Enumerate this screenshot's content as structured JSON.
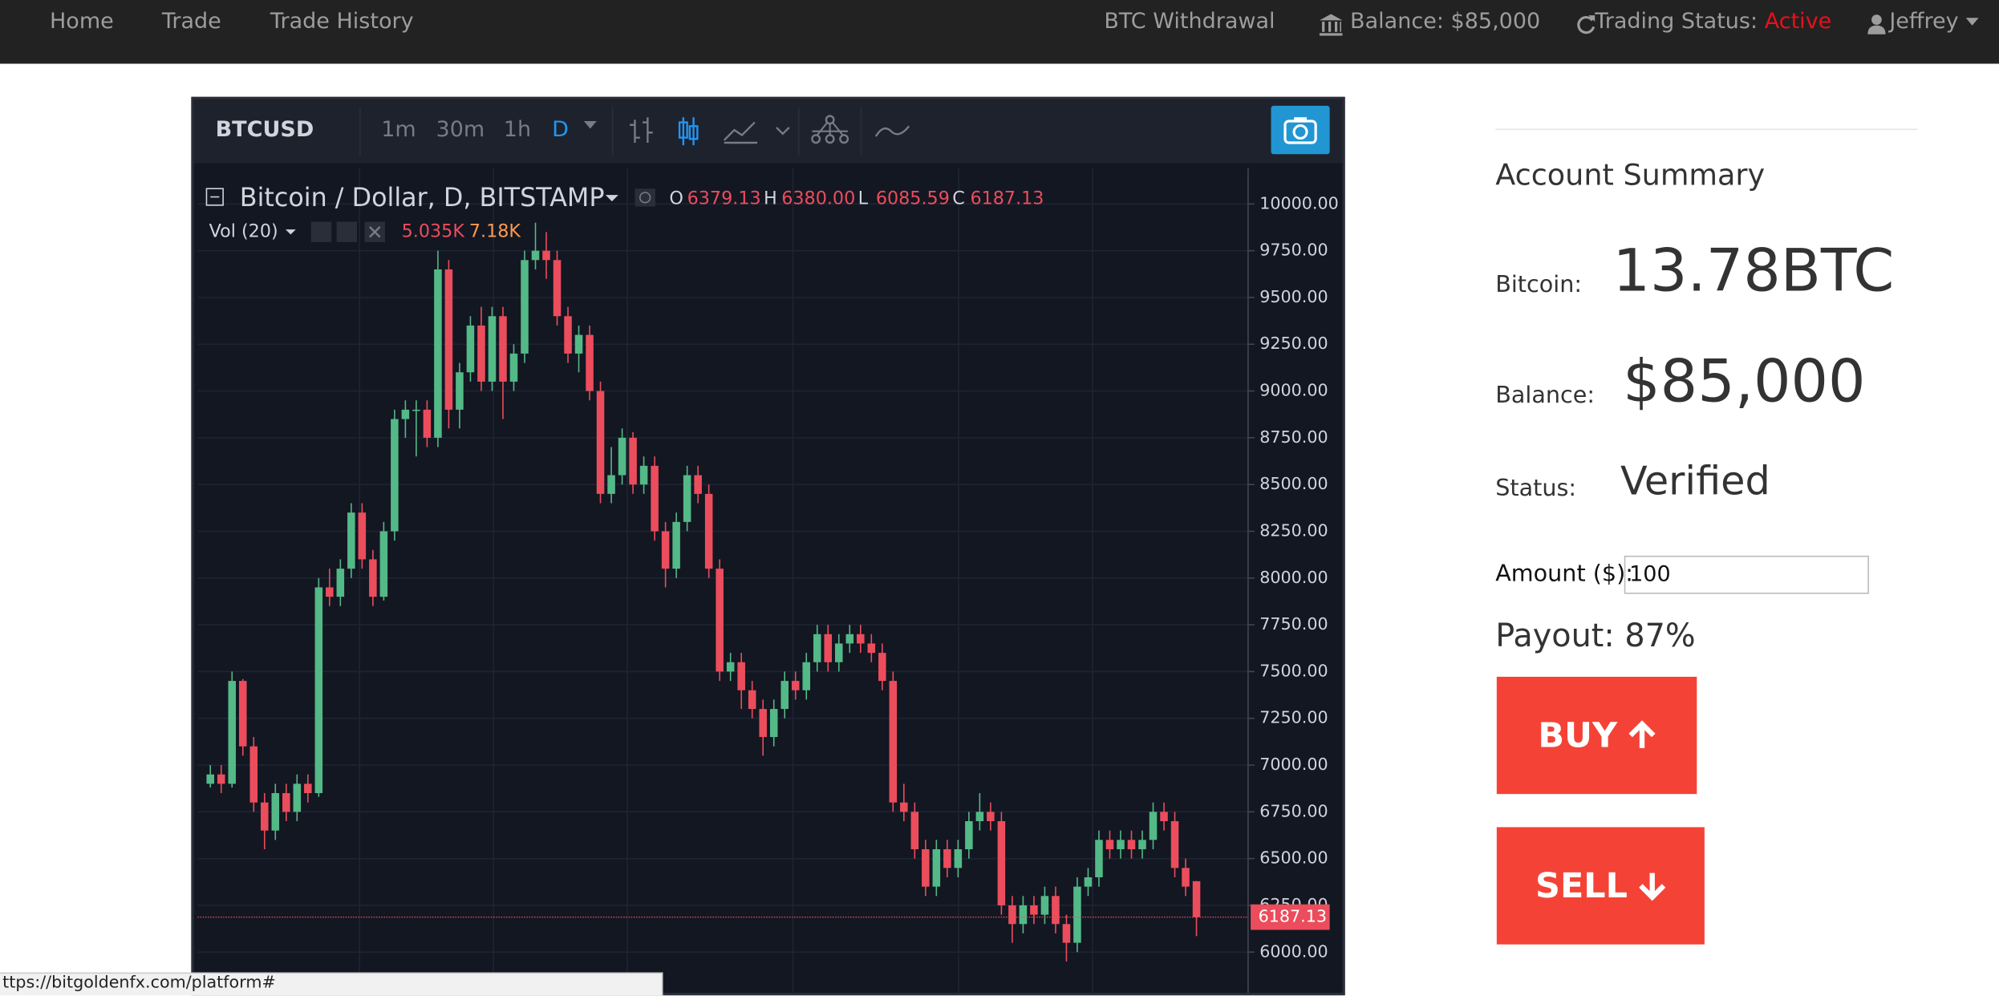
{
  "nav": {
    "links": [
      "Home",
      "Trade",
      "Trade History"
    ],
    "withdrawal": "BTC Withdrawal",
    "balance": "Balance: $85,000",
    "status_label": "Trading Status:",
    "status_value": "Active",
    "user": "Jeffrey"
  },
  "widget": {
    "symbol": "BTCUSD",
    "intervals": [
      "1m",
      "30m",
      "1h",
      "D"
    ],
    "legend": {
      "title": "Bitcoin / Dollar, D, BITSTAMP",
      "ohlc": [
        {
          "key": "O",
          "value": "6379.13"
        },
        {
          "key": "H",
          "value": "6380.00"
        },
        {
          "key": "L",
          "value": "6085.59"
        },
        {
          "key": "C",
          "value": "6187.13"
        }
      ],
      "vol_label": "Vol (20)",
      "vol_values": [
        "5.035K",
        "7.18K"
      ]
    }
  },
  "chart_data": {
    "type": "candlestick",
    "up_color": "#53b987",
    "down_color": "#eb4d5c",
    "ylim": [
      5755,
      10191
    ],
    "yticks": [
      {
        "value": 10000,
        "label": "10000.00"
      },
      {
        "value": 9750,
        "label": "9750.00"
      },
      {
        "value": 9500,
        "label": "9500.00"
      },
      {
        "value": 9250,
        "label": "9250.00"
      },
      {
        "value": 9000,
        "label": "9000.00"
      },
      {
        "value": 8750,
        "label": "8750.00"
      },
      {
        "value": 8500,
        "label": "8500.00"
      },
      {
        "value": 8250,
        "label": "8250.00"
      },
      {
        "value": 8000,
        "label": "8000.00"
      },
      {
        "value": 7750,
        "label": "7750.00"
      },
      {
        "value": 7500,
        "label": "7500.00"
      },
      {
        "value": 7250,
        "label": "7250.00"
      },
      {
        "value": 7000,
        "label": "7000.00"
      },
      {
        "value": 6750,
        "label": "6750.00"
      },
      {
        "value": 6500,
        "label": "6500.00"
      },
      {
        "value": 6250,
        "label": "6250.00"
      },
      {
        "value": 6000,
        "label": "6000.00"
      }
    ],
    "candles": [
      [
        6900,
        7000,
        6880,
        6950
      ],
      [
        6950,
        7000,
        6850,
        6900
      ],
      [
        6900,
        7500,
        6880,
        7450
      ],
      [
        7450,
        7460,
        7050,
        7100
      ],
      [
        7100,
        7150,
        6750,
        6800
      ],
      [
        6800,
        6850,
        6550,
        6650
      ],
      [
        6650,
        6900,
        6600,
        6850
      ],
      [
        6850,
        6900,
        6700,
        6750
      ],
      [
        6750,
        6950,
        6700,
        6900
      ],
      [
        6900,
        6950,
        6800,
        6850
      ],
      [
        6850,
        8000,
        6830,
        7950
      ],
      [
        7950,
        8050,
        7850,
        7900
      ],
      [
        7900,
        8100,
        7850,
        8050
      ],
      [
        8050,
        8400,
        8000,
        8350
      ],
      [
        8350,
        8400,
        8050,
        8100
      ],
      [
        8100,
        8150,
        7850,
        7900
      ],
      [
        7900,
        8300,
        7880,
        8250
      ],
      [
        8250,
        8900,
        8200,
        8850
      ],
      [
        8850,
        8950,
        8750,
        8900
      ],
      [
        8900,
        8950,
        8650,
        8900
      ],
      [
        8900,
        8950,
        8700,
        8750
      ],
      [
        8750,
        9750,
        8700,
        9650
      ],
      [
        9650,
        9700,
        8800,
        8900
      ],
      [
        8900,
        9150,
        8800,
        9100
      ],
      [
        9100,
        9400,
        9050,
        9350
      ],
      [
        9350,
        9450,
        9000,
        9050
      ],
      [
        9050,
        9450,
        9000,
        9400
      ],
      [
        9400,
        9450,
        8850,
        9050
      ],
      [
        9050,
        9250,
        9000,
        9200
      ],
      [
        9200,
        9750,
        9150,
        9700
      ],
      [
        9700,
        9900,
        9650,
        9750
      ],
      [
        9750,
        9850,
        9600,
        9700
      ],
      [
        9700,
        9750,
        9350,
        9400
      ],
      [
        9400,
        9450,
        9150,
        9200
      ],
      [
        9200,
        9350,
        9100,
        9300
      ],
      [
        9300,
        9350,
        8950,
        9000
      ],
      [
        9000,
        9050,
        8400,
        8450
      ],
      [
        8450,
        8700,
        8400,
        8550
      ],
      [
        8550,
        8800,
        8500,
        8750
      ],
      [
        8750,
        8780,
        8450,
        8500
      ],
      [
        8500,
        8650,
        8450,
        8600
      ],
      [
        8600,
        8650,
        8200,
        8250
      ],
      [
        8250,
        8300,
        7950,
        8050
      ],
      [
        8050,
        8350,
        8000,
        8300
      ],
      [
        8300,
        8600,
        8250,
        8550
      ],
      [
        8550,
        8600,
        8400,
        8450
      ],
      [
        8450,
        8500,
        8000,
        8050
      ],
      [
        8050,
        8100,
        7450,
        7500
      ],
      [
        7500,
        7600,
        7450,
        7550
      ],
      [
        7550,
        7600,
        7300,
        7400
      ],
      [
        7400,
        7450,
        7250,
        7300
      ],
      [
        7300,
        7350,
        7050,
        7150
      ],
      [
        7150,
        7350,
        7100,
        7300
      ],
      [
        7300,
        7500,
        7250,
        7450
      ],
      [
        7450,
        7500,
        7350,
        7400
      ],
      [
        7400,
        7600,
        7350,
        7550
      ],
      [
        7550,
        7750,
        7500,
        7700
      ],
      [
        7700,
        7750,
        7500,
        7550
      ],
      [
        7550,
        7700,
        7500,
        7650
      ],
      [
        7650,
        7750,
        7600,
        7700
      ],
      [
        7700,
        7750,
        7600,
        7650
      ],
      [
        7650,
        7700,
        7550,
        7600
      ],
      [
        7600,
        7650,
        7400,
        7450
      ],
      [
        7450,
        7500,
        6750,
        6800
      ],
      [
        6800,
        6900,
        6700,
        6750
      ],
      [
        6750,
        6800,
        6500,
        6550
      ],
      [
        6550,
        6600,
        6300,
        6350
      ],
      [
        6350,
        6600,
        6300,
        6550
      ],
      [
        6550,
        6600,
        6400,
        6450
      ],
      [
        6450,
        6600,
        6400,
        6550
      ],
      [
        6550,
        6750,
        6500,
        6700
      ],
      [
        6700,
        6850,
        6650,
        6750
      ],
      [
        6750,
        6800,
        6650,
        6700
      ],
      [
        6700,
        6750,
        6200,
        6250
      ],
      [
        6250,
        6300,
        6050,
        6150
      ],
      [
        6150,
        6300,
        6100,
        6250
      ],
      [
        6250,
        6300,
        6150,
        6200
      ],
      [
        6200,
        6350,
        6150,
        6300
      ],
      [
        6300,
        6350,
        6100,
        6150
      ],
      [
        6150,
        6200,
        5950,
        6050
      ],
      [
        6050,
        6400,
        6000,
        6350
      ],
      [
        6350,
        6450,
        6300,
        6400
      ],
      [
        6400,
        6650,
        6350,
        6600
      ],
      [
        6600,
        6650,
        6500,
        6550
      ],
      [
        6550,
        6650,
        6500,
        6600
      ],
      [
        6600,
        6650,
        6500,
        6550
      ],
      [
        6550,
        6650,
        6500,
        6600
      ],
      [
        6600,
        6800,
        6550,
        6750
      ],
      [
        6750,
        6800,
        6650,
        6700
      ],
      [
        6700,
        6750,
        6400,
        6450
      ],
      [
        6450,
        6500,
        6300,
        6350
      ],
      [
        6379.13,
        6380,
        6085.59,
        6187.13
      ]
    ]
  },
  "account": {
    "title": "Account Summary",
    "rows": [
      {
        "label": "Bitcoin:",
        "value": "13.78BTC"
      },
      {
        "label": "Balance:",
        "value": "$85,000"
      },
      {
        "label": "Status:",
        "value": "Verified"
      }
    ],
    "amount_label": "Amount ($):",
    "amount_value": "100",
    "payout": "Payout: 87%",
    "buy": "BUY",
    "sell": "SELL"
  },
  "status_bar": "ttps://bitgoldenfx.com/platform#"
}
